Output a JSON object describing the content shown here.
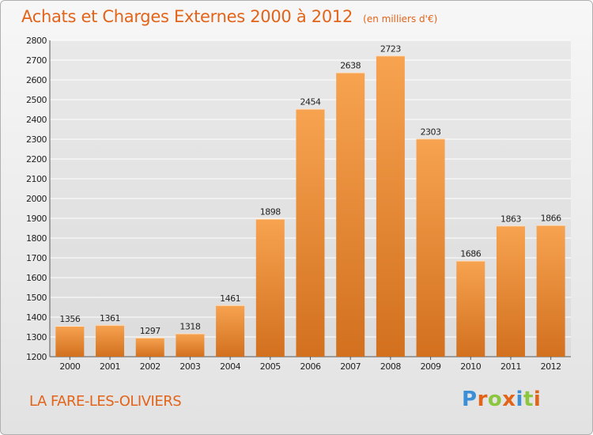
{
  "header": {
    "title": "Achats et Charges Externes 2000 à 2012",
    "subtitle": "(en milliers d'€)"
  },
  "footer": {
    "location": "LA FARE-LES-OLIVIERS",
    "brand": "Proxiti",
    "brand_colors": [
      "#3a8fd6",
      "#e2641a",
      "#8cc63f",
      "#e2641a",
      "#3a8fd6",
      "#8cc63f",
      "#e2641a"
    ]
  },
  "colors": {
    "accent": "#e2641a",
    "bar_light": "#f7a350",
    "bar_dark": "#d2701e",
    "grid": "#ffffff"
  },
  "chart_data": {
    "type": "bar",
    "title": "Achats et Charges Externes 2000 à 2012",
    "subtitle": "(en milliers d'€)",
    "categories": [
      "2000",
      "2001",
      "2002",
      "2003",
      "2004",
      "2005",
      "2006",
      "2007",
      "2008",
      "2009",
      "2010",
      "2011",
      "2012"
    ],
    "values": [
      1356,
      1361,
      1297,
      1318,
      1461,
      1898,
      2454,
      2638,
      2723,
      2303,
      1686,
      1863,
      1866
    ],
    "ylim": [
      1200,
      2800
    ],
    "yticks": [
      1200,
      1300,
      1400,
      1500,
      1600,
      1700,
      1800,
      1900,
      2000,
      2100,
      2200,
      2300,
      2400,
      2500,
      2600,
      2700,
      2800
    ],
    "grid": true,
    "data_labels": true
  }
}
